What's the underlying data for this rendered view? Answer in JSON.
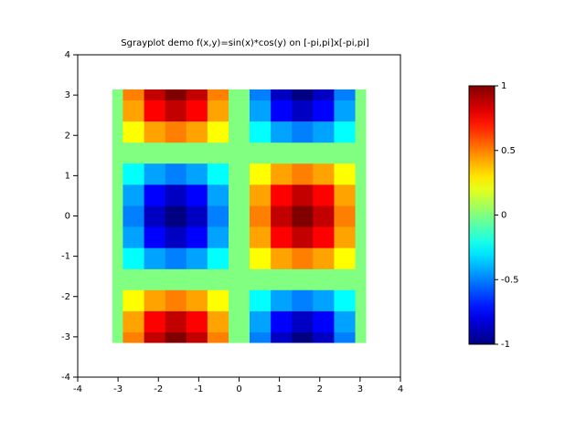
{
  "chart_data": {
    "type": "heatmap",
    "title": "Sgrayplot demo f(x,y)=sin(x)*cos(y) on [-pi,pi]x[-pi,pi]",
    "colorscale": "jet",
    "x": [
      -3.14,
      -2.62,
      -2.09,
      -1.57,
      -1.05,
      -0.52,
      0,
      0.52,
      1.05,
      1.57,
      2.09,
      2.62,
      3.14
    ],
    "y": [
      -3.14,
      -2.62,
      -2.09,
      -1.57,
      -1.05,
      -0.52,
      0,
      0.52,
      1.05,
      1.57,
      2.09,
      2.62,
      3.14
    ],
    "z": [
      [
        0,
        0.5,
        0.87,
        1,
        0.87,
        0.5,
        0,
        -0.5,
        -0.87,
        -1,
        -0.87,
        -0.5,
        0
      ],
      [
        0,
        0.43,
        0.75,
        0.87,
        0.75,
        0.43,
        0,
        -0.43,
        -0.75,
        -0.87,
        -0.75,
        -0.43,
        0
      ],
      [
        0,
        0.25,
        0.43,
        0.5,
        0.43,
        0.25,
        0,
        -0.25,
        -0.43,
        -0.5,
        -0.43,
        -0.25,
        0
      ],
      [
        0,
        0,
        0,
        0,
        0,
        0,
        0,
        0,
        0,
        0,
        0,
        0,
        0
      ],
      [
        0,
        -0.25,
        -0.43,
        -0.5,
        -0.43,
        -0.25,
        0,
        0.25,
        0.43,
        0.5,
        0.43,
        0.25,
        0
      ],
      [
        0,
        -0.43,
        -0.75,
        -0.87,
        -0.75,
        -0.43,
        0,
        0.43,
        0.75,
        0.87,
        0.75,
        0.43,
        0
      ],
      [
        0,
        -0.5,
        -0.87,
        -1,
        -0.87,
        -0.5,
        0,
        0.5,
        0.87,
        1,
        0.87,
        0.5,
        0
      ],
      [
        0,
        -0.43,
        -0.75,
        -0.87,
        -0.75,
        -0.43,
        0,
        0.43,
        0.75,
        0.87,
        0.75,
        0.43,
        0
      ],
      [
        0,
        -0.25,
        -0.43,
        -0.5,
        -0.43,
        -0.25,
        0,
        0.25,
        0.43,
        0.5,
        0.43,
        0.25,
        0
      ],
      [
        0,
        0,
        0,
        0,
        0,
        0,
        0,
        0,
        0,
        0,
        0,
        0,
        0
      ],
      [
        0,
        0.25,
        0.43,
        0.5,
        0.43,
        0.25,
        0,
        -0.25,
        -0.43,
        -0.5,
        -0.43,
        -0.25,
        0
      ],
      [
        0,
        0.43,
        0.75,
        0.87,
        0.75,
        0.43,
        0,
        -0.43,
        -0.75,
        -0.87,
        -0.75,
        -0.43,
        0
      ],
      [
        0,
        0.5,
        0.87,
        1,
        0.87,
        0.5,
        0,
        -0.5,
        -0.87,
        -1,
        -0.87,
        -0.5,
        0
      ]
    ],
    "xlim": [
      -4,
      4
    ],
    "xticks": [
      -4,
      -3,
      -2,
      -1,
      0,
      1,
      2,
      3,
      4
    ],
    "ylim": [
      -4,
      4
    ],
    "yticks": [
      -4,
      -3,
      -2,
      -1,
      0,
      1,
      2,
      3,
      4
    ],
    "zlim": [
      -1,
      1
    ],
    "colorbar_ticks": [
      -1,
      -0.5,
      0,
      0.5,
      1
    ]
  }
}
